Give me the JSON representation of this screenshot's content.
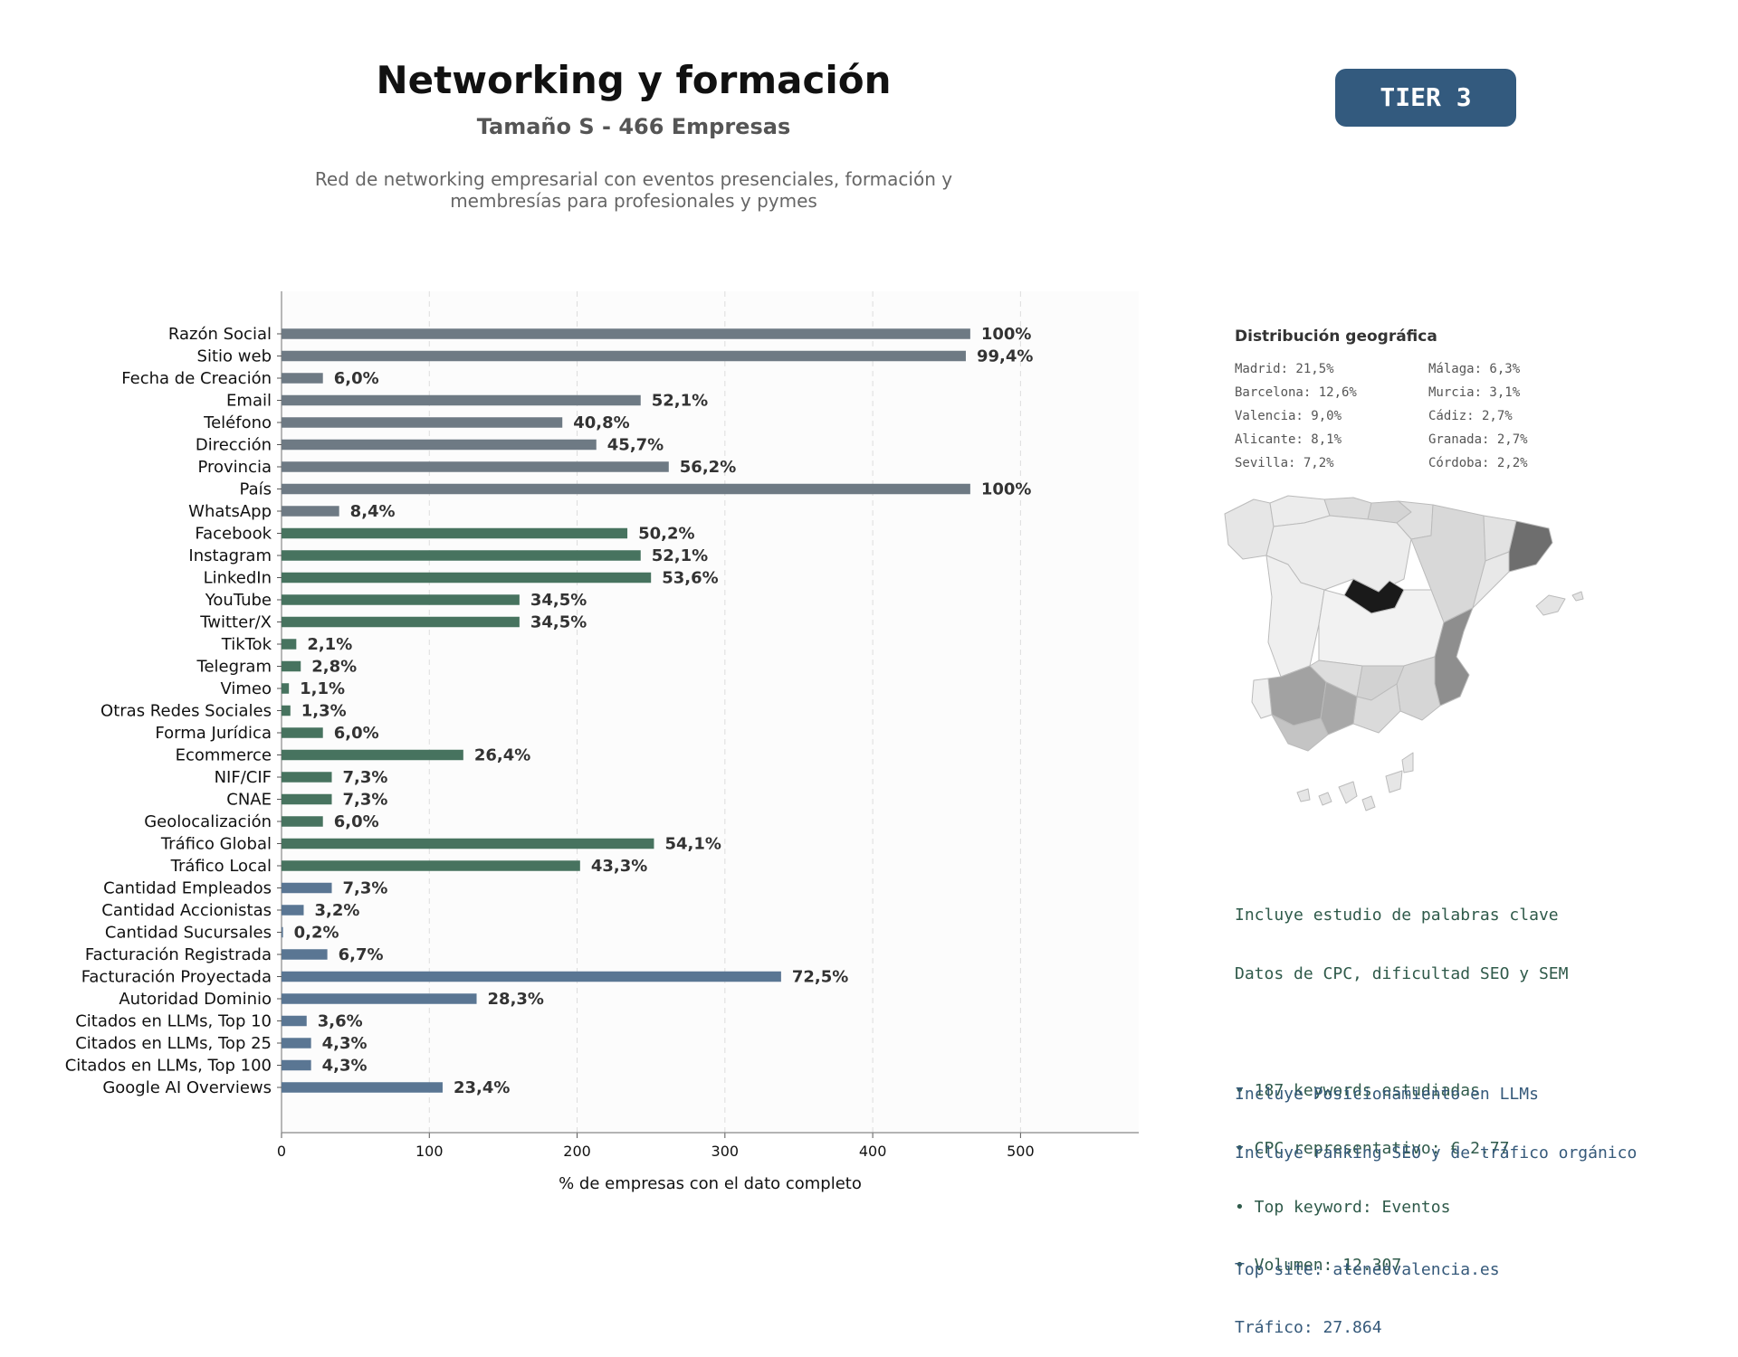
{
  "header": {
    "title": "Networking y formación",
    "subtitle": "Tamaño S - 466 Empresas",
    "description_line1": "Red de networking empresarial con eventos presenciales, formación y",
    "description_line2": "membresías para profesionales y pymes",
    "tier": "TIER 3"
  },
  "colors": {
    "group1": "#6e7a84",
    "group2": "#47735f",
    "group3": "#5a7693",
    "tier_bg": "#335a7e"
  },
  "chart_data": {
    "type": "bar",
    "orientation": "horizontal",
    "xlabel": "% de empresas con el dato completo",
    "xlim": [
      0,
      580
    ],
    "xticks": [
      0,
      100,
      200,
      300,
      400,
      500
    ],
    "grid": "vertical-dashed",
    "categories": [
      "Razón Social",
      "Sitio web",
      "Fecha de Creación",
      "Email",
      "Teléfono",
      "Dirección",
      "Provincia",
      "País",
      "WhatsApp",
      "Facebook",
      "Instagram",
      "LinkedIn",
      "YouTube",
      "Twitter/X",
      "TikTok",
      "Telegram",
      "Vimeo",
      "Otras Redes Sociales",
      "Forma Jurídica",
      "Ecommerce",
      "NIF/CIF",
      "CNAE",
      "Geolocalización",
      "Tráfico Global",
      "Tráfico Local",
      "Cantidad Empleados",
      "Cantidad Accionistas",
      "Cantidad Sucursales",
      "Facturación Registrada",
      "Facturación Proyectada",
      "Autoridad Dominio",
      "Citados en LLMs, Top 10",
      "Citados en LLMs, Top 25",
      "Citados en LLMs, Top 100",
      "Google AI Overviews"
    ],
    "values": [
      466,
      463,
      28,
      243,
      190,
      213,
      262,
      466,
      39,
      234,
      243,
      250,
      161,
      161,
      10,
      13,
      5,
      6,
      28,
      123,
      34,
      34,
      28,
      252,
      202,
      34,
      15,
      1,
      31,
      338,
      132,
      17,
      20,
      20,
      109
    ],
    "labels": [
      "100%",
      "99,4%",
      "6,0%",
      "52,1%",
      "40,8%",
      "45,7%",
      "56,2%",
      "100%",
      "8,4%",
      "50,2%",
      "52,1%",
      "53,6%",
      "34,5%",
      "34,5%",
      "2,1%",
      "2,8%",
      "1,1%",
      "1,3%",
      "6,0%",
      "26,4%",
      "7,3%",
      "7,3%",
      "6,0%",
      "54,1%",
      "43,3%",
      "7,3%",
      "3,2%",
      "0,2%",
      "6,7%",
      "72,5%",
      "28,3%",
      "3,6%",
      "4,3%",
      "4,3%",
      "23,4%"
    ],
    "groups": [
      1,
      1,
      1,
      1,
      1,
      1,
      1,
      1,
      1,
      2,
      2,
      2,
      2,
      2,
      2,
      2,
      2,
      2,
      2,
      2,
      2,
      2,
      2,
      2,
      2,
      3,
      3,
      3,
      3,
      3,
      3,
      3,
      3,
      3,
      3
    ]
  },
  "geo": {
    "title": "Distribución geográfica",
    "items": [
      "Madrid: 21,5%",
      "Málaga: 6,3%",
      "Barcelona: 12,6%",
      "Murcia: 3,1%",
      "Valencia: 9,0%",
      "Cádiz: 2,7%",
      "Alicante: 8,1%",
      "Granada: 2,7%",
      "Sevilla: 7,2%",
      "Córdoba: 2,2%"
    ]
  },
  "keywords": {
    "line1": "Incluye estudio de palabras clave",
    "line2": "Datos de CPC, dificultad SEO y SEM",
    "b1": "• 187 keywords estudiadas",
    "b2": "• CPC representativo: € 2.77",
    "b3": "• Top keyword: Eventos",
    "b4": "• Volumen: 12.307"
  },
  "llm": {
    "line1": "Incluye Posicionamiento en LLMs",
    "line2": "Incluye ranking SEO y de tráfico orgánico",
    "site": "Top site: ateneovalencia.es",
    "traffic": "Tráfico: 27.864"
  }
}
